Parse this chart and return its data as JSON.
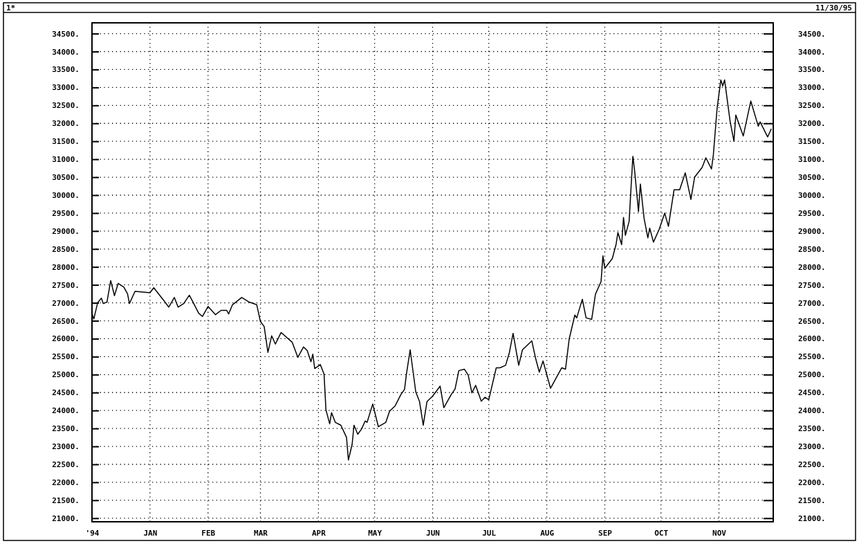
{
  "chart_data": {
    "type": "line",
    "subtitle": "11/30/95",
    "annotations": [
      "1*"
    ],
    "xlim": [
      "1994-12-01",
      "1995-11-30"
    ],
    "xticks": [
      {
        "value": "1994-12-01",
        "label": "'94"
      },
      {
        "value": "1995-01-01",
        "label": "JAN"
      },
      {
        "value": "1995-02-01",
        "label": "FEB"
      },
      {
        "value": "1995-03-01",
        "label": "MAR"
      },
      {
        "value": "1995-04-01",
        "label": "APR"
      },
      {
        "value": "1995-05-01",
        "label": "MAY"
      },
      {
        "value": "1995-06-01",
        "label": "JUN"
      },
      {
        "value": "1995-07-01",
        "label": "JUL"
      },
      {
        "value": "1995-08-01",
        "label": "AUG"
      },
      {
        "value": "1995-09-01",
        "label": "SEP"
      },
      {
        "value": "1995-10-01",
        "label": "OCT"
      },
      {
        "value": "1995-11-01",
        "label": "NOV"
      }
    ],
    "ylim": [
      20900,
      34800
    ],
    "yticks": [
      {
        "value": 21000,
        "label": "21000."
      },
      {
        "value": 21500,
        "label": "21500."
      },
      {
        "value": 22000,
        "label": "22000."
      },
      {
        "value": 22500,
        "label": "22500."
      },
      {
        "value": 23000,
        "label": "23000."
      },
      {
        "value": 23500,
        "label": "23500."
      },
      {
        "value": 24000,
        "label": "24000."
      },
      {
        "value": 24500,
        "label": "24500."
      },
      {
        "value": 25000,
        "label": "25000."
      },
      {
        "value": 25500,
        "label": "25500."
      },
      {
        "value": 26000,
        "label": "26000."
      },
      {
        "value": 26500,
        "label": "26500."
      },
      {
        "value": 27000,
        "label": "27000."
      },
      {
        "value": 27500,
        "label": "27500."
      },
      {
        "value": 28000,
        "label": "28000."
      },
      {
        "value": 28500,
        "label": "28500."
      },
      {
        "value": 29000,
        "label": "29000."
      },
      {
        "value": 29500,
        "label": "29500."
      },
      {
        "value": 30000,
        "label": "30000."
      },
      {
        "value": 30500,
        "label": "30500."
      },
      {
        "value": 31000,
        "label": "31000."
      },
      {
        "value": 31500,
        "label": "31500."
      },
      {
        "value": 32000,
        "label": "32000."
      },
      {
        "value": 32500,
        "label": "32500."
      },
      {
        "value": 33000,
        "label": "33000."
      },
      {
        "value": 33500,
        "label": "33500."
      },
      {
        "value": 34000,
        "label": "34000."
      },
      {
        "value": 34500,
        "label": "34500."
      }
    ],
    "y2lim": [
      20900,
      34800
    ],
    "y2ticks": [
      {
        "value": 21000,
        "label": "21000."
      },
      {
        "value": 21500,
        "label": "21500."
      },
      {
        "value": 22000,
        "label": "22000."
      },
      {
        "value": 22500,
        "label": "22500."
      },
      {
        "value": 23000,
        "label": "23000."
      },
      {
        "value": 23500,
        "label": "23500."
      },
      {
        "value": 24000,
        "label": "24000."
      },
      {
        "value": 24500,
        "label": "24500."
      },
      {
        "value": 25000,
        "label": "25000."
      },
      {
        "value": 25500,
        "label": "25500."
      },
      {
        "value": 26000,
        "label": "26000."
      },
      {
        "value": 26500,
        "label": "26500."
      },
      {
        "value": 27000,
        "label": "27000."
      },
      {
        "value": 27500,
        "label": "27500."
      },
      {
        "value": 28000,
        "label": "28000."
      },
      {
        "value": 28500,
        "label": "28500."
      },
      {
        "value": 29000,
        "label": "29000."
      },
      {
        "value": 29500,
        "label": "29500."
      },
      {
        "value": 30000,
        "label": "30000."
      },
      {
        "value": 30500,
        "label": "30500."
      },
      {
        "value": 31000,
        "label": "31000."
      },
      {
        "value": 31500,
        "label": "31500."
      },
      {
        "value": 32000,
        "label": "32000."
      },
      {
        "value": 32500,
        "label": "32500."
      },
      {
        "value": 33000,
        "label": "33000."
      },
      {
        "value": 33500,
        "label": "33500."
      },
      {
        "value": 34000,
        "label": "34000."
      },
      {
        "value": 34500,
        "label": "34500."
      }
    ],
    "grid": true,
    "marker": "none",
    "line_style": "solid",
    "series": [
      {
        "color": "#000000",
        "x": [
          "1994-12-01",
          "1994-12-02",
          "1994-12-04",
          "1994-12-06",
          "1994-12-07",
          "1994-12-09",
          "1994-12-11",
          "1994-12-13",
          "1994-12-15",
          "1994-12-18",
          "1994-12-20",
          "1994-12-21",
          "1994-12-24",
          "1995-01-01",
          "1995-01-03",
          "1995-01-08",
          "1995-01-11",
          "1995-01-14",
          "1995-01-16",
          "1995-01-19",
          "1995-01-22",
          "1995-01-24",
          "1995-01-27",
          "1995-01-29",
          "1995-02-01",
          "1995-02-05",
          "1995-02-08",
          "1995-02-11",
          "1995-02-12",
          "1995-02-14",
          "1995-02-19",
          "1995-02-23",
          "1995-02-27",
          "1995-03-01",
          "1995-03-03",
          "1995-03-05",
          "1995-03-07",
          "1995-03-09",
          "1995-03-12",
          "1995-03-13",
          "1995-03-18",
          "1995-03-21",
          "1995-03-24",
          "1995-03-26",
          "1995-03-28",
          "1995-03-29",
          "1995-03-30",
          "1995-04-02",
          "1995-04-04",
          "1995-04-05",
          "1995-04-07",
          "1995-04-08",
          "1995-04-10",
          "1995-04-13",
          "1995-04-16",
          "1995-04-17",
          "1995-04-19",
          "1995-04-20",
          "1995-04-22",
          "1995-04-24",
          "1995-04-26",
          "1995-04-27",
          "1995-04-30",
          "1995-05-03",
          "1995-05-07",
          "1995-05-09",
          "1995-05-12",
          "1995-05-15",
          "1995-05-17",
          "1995-05-18",
          "1995-05-20",
          "1995-05-23",
          "1995-05-25",
          "1995-05-27",
          "1995-05-29",
          "1995-06-01",
          "1995-06-05",
          "1995-06-07",
          "1995-06-11",
          "1995-06-13",
          "1995-06-15",
          "1995-06-18",
          "1995-06-20",
          "1995-06-22",
          "1995-06-24",
          "1995-06-27",
          "1995-06-29",
          "1995-07-01",
          "1995-07-05",
          "1995-07-07",
          "1995-07-10",
          "1995-07-12",
          "1995-07-14",
          "1995-07-17",
          "1995-07-19",
          "1995-07-24",
          "1995-07-26",
          "1995-07-28",
          "1995-07-30",
          "1995-08-03",
          "1995-08-09",
          "1995-08-11",
          "1995-08-13",
          "1995-08-16",
          "1995-08-17",
          "1995-08-20",
          "1995-08-22",
          "1995-08-25",
          "1995-08-27",
          "1995-08-30",
          "1995-08-31",
          "1995-09-01",
          "1995-09-05",
          "1995-09-07",
          "1995-09-08",
          "1995-09-10",
          "1995-09-11",
          "1995-09-12",
          "1995-09-14",
          "1995-09-15",
          "1995-09-16",
          "1995-09-17",
          "1995-09-19",
          "1995-09-20",
          "1995-09-22",
          "1995-09-24",
          "1995-09-25",
          "1995-09-27",
          "1995-09-30",
          "1995-10-03",
          "1995-10-05",
          "1995-10-08",
          "1995-10-11",
          "1995-10-14",
          "1995-10-17",
          "1995-10-19",
          "1995-10-23",
          "1995-10-25",
          "1995-10-28",
          "1995-10-29",
          "1995-10-31",
          "1995-11-02",
          "1995-11-03",
          "1995-11-04",
          "1995-11-07",
          "1995-11-09",
          "1995-11-10",
          "1995-11-14",
          "1995-11-18",
          "1995-11-22",
          "1995-11-23",
          "1995-11-27",
          "1995-11-29"
        ],
        "values": [
          26700,
          26550,
          27000,
          27130,
          26980,
          27020,
          27620,
          27200,
          27540,
          27440,
          27250,
          26980,
          27320,
          27280,
          27420,
          27090,
          26880,
          27150,
          26880,
          26980,
          27210,
          27020,
          26710,
          26620,
          26900,
          26670,
          26790,
          26790,
          26690,
          26940,
          27150,
          27020,
          26950,
          26480,
          26340,
          25620,
          26080,
          25850,
          26170,
          26130,
          25900,
          25480,
          25770,
          25670,
          25360,
          25570,
          25170,
          25280,
          25010,
          24020,
          23630,
          23940,
          23670,
          23590,
          23250,
          22620,
          23060,
          23590,
          23340,
          23480,
          23710,
          23670,
          24180,
          23550,
          23670,
          23980,
          24130,
          24440,
          24590,
          25010,
          25690,
          24520,
          24250,
          23590,
          24250,
          24400,
          24680,
          24080,
          24450,
          24600,
          25110,
          25150,
          24990,
          24490,
          24700,
          24260,
          24370,
          24300,
          25190,
          25190,
          25260,
          25610,
          26150,
          25260,
          25690,
          25940,
          25460,
          25070,
          25380,
          24620,
          25190,
          25150,
          26000,
          26660,
          26580,
          27100,
          26580,
          26540,
          27240,
          27590,
          28310,
          27960,
          28230,
          28620,
          28960,
          28620,
          29380,
          28880,
          29270,
          30190,
          31080,
          30650,
          29540,
          30310,
          29350,
          28810,
          29080,
          28690,
          29040,
          29500,
          29130,
          30150,
          30150,
          30620,
          29880,
          30500,
          30770,
          31040,
          30730,
          31120,
          32420,
          33210,
          33040,
          33210,
          32040,
          31500,
          32230,
          31650,
          32620,
          31920,
          32040,
          31620,
          31850
        ]
      }
    ]
  }
}
